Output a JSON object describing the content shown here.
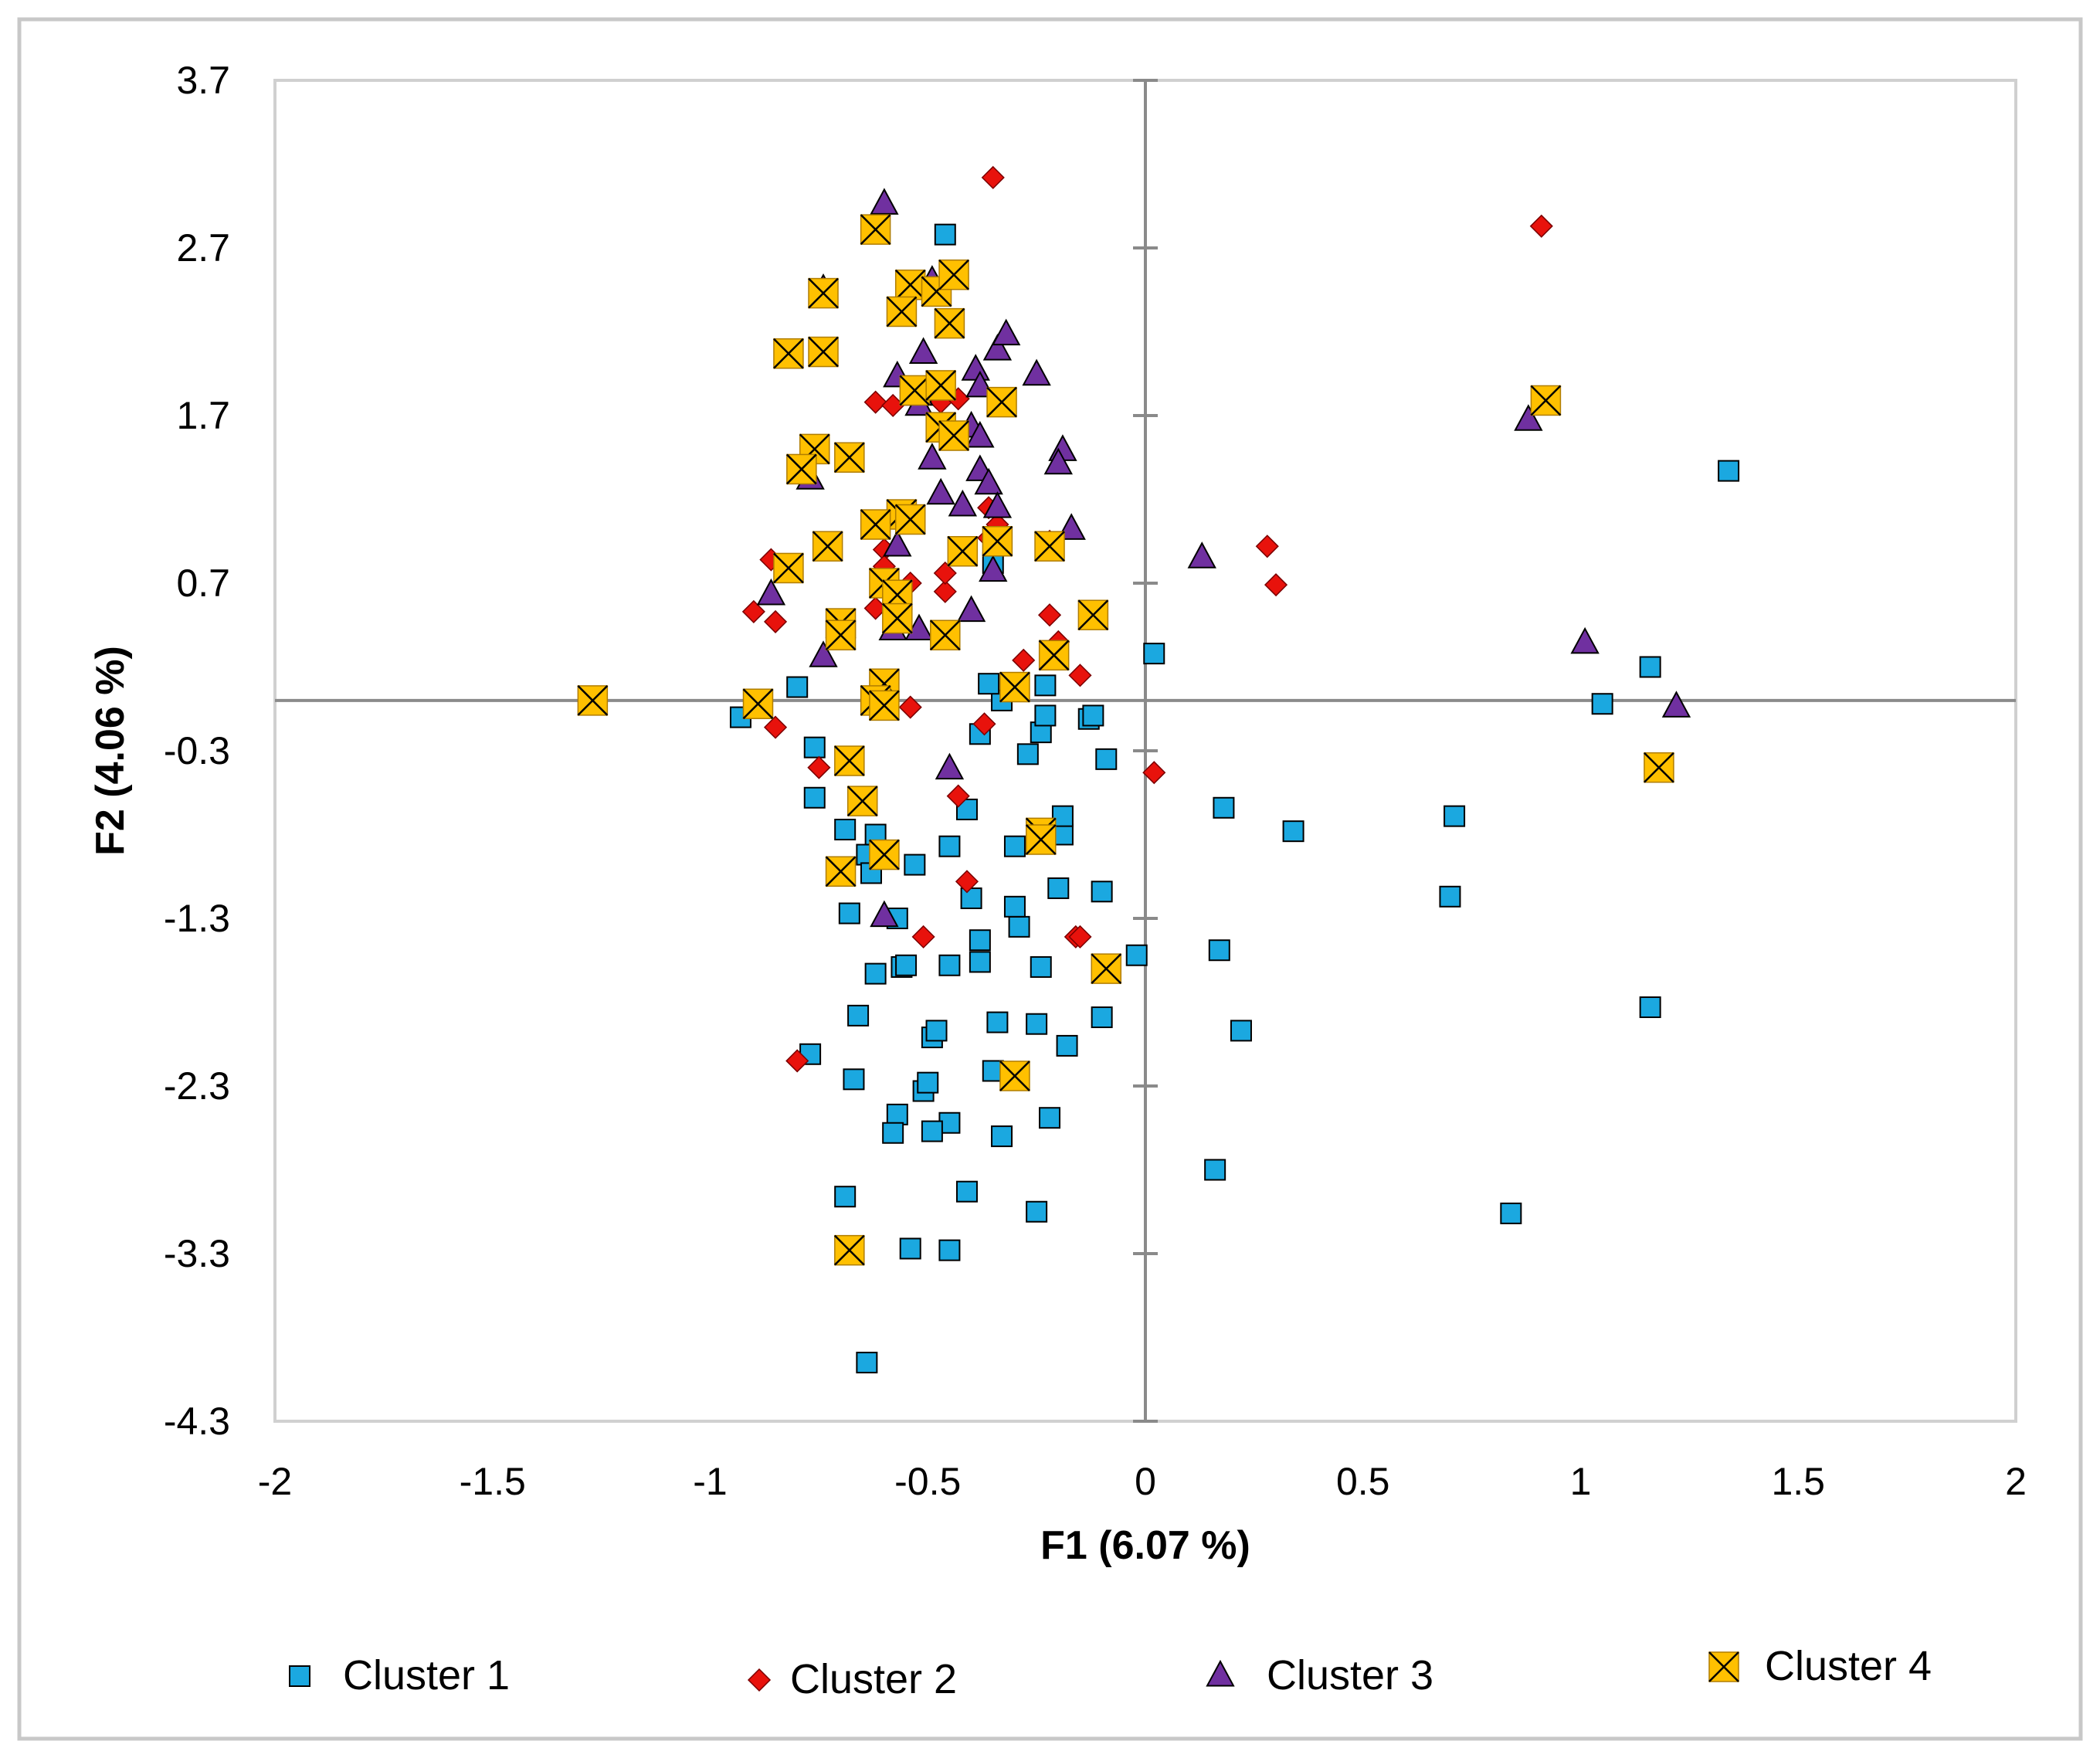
{
  "chart_data": {
    "type": "scatter",
    "title": "",
    "xlabel": "F1 (6.07 %)",
    "ylabel": "F2 (4.06 %)",
    "xlim": [
      -2,
      2
    ],
    "ylim": [
      -4.3,
      3.7
    ],
    "xticks": [
      -2,
      -1.5,
      -1,
      -0.5,
      0,
      0.5,
      1,
      1.5,
      2
    ],
    "xtick_labels": [
      "-2",
      "-1.5",
      "-1",
      "-0.5",
      "0",
      "0.5",
      "1",
      "1.5",
      "2"
    ],
    "yticks": [
      3.7,
      2.7,
      1.7,
      0.7,
      -0.3,
      -1.3,
      -2.3,
      -3.3,
      -4.3
    ],
    "ytick_labels": [
      "3.7",
      "2.7",
      "1.7",
      "0.7",
      "-0.3",
      "-1.3",
      "-2.3",
      "-3.3",
      "-4.3"
    ],
    "grid": false,
    "legend_position": "bottom",
    "series": [
      {
        "name": "Cluster 1",
        "marker": "square",
        "color": "#1BA8E0",
        "points": [
          [
            -0.46,
            2.78
          ],
          [
            -0.8,
            0.08
          ],
          [
            -0.93,
            -0.1
          ],
          [
            -0.76,
            -0.28
          ],
          [
            -0.76,
            -0.58
          ],
          [
            -0.69,
            -0.77
          ],
          [
            -0.64,
            -0.92
          ],
          [
            -0.63,
            -1.03
          ],
          [
            -0.62,
            -0.8
          ],
          [
            -0.68,
            -1.27
          ],
          [
            -0.62,
            -1.63
          ],
          [
            -0.66,
            -1.88
          ],
          [
            -0.77,
            -2.11
          ],
          [
            -0.67,
            -2.26
          ],
          [
            -0.57,
            -2.47
          ],
          [
            -0.58,
            -2.58
          ],
          [
            -0.69,
            -2.96
          ],
          [
            -0.54,
            -3.27
          ],
          [
            -0.45,
            -3.28
          ],
          [
            -0.41,
            -2.93
          ],
          [
            -0.45,
            -2.52
          ],
          [
            -0.49,
            -2.57
          ],
          [
            -0.51,
            -2.33
          ],
          [
            -0.5,
            -2.28
          ],
          [
            -0.49,
            -2.01
          ],
          [
            -0.48,
            -1.97
          ],
          [
            -0.56,
            -1.59
          ],
          [
            -0.55,
            -1.58
          ],
          [
            -0.57,
            -1.3
          ],
          [
            -0.53,
            -0.98
          ],
          [
            -0.45,
            -0.87
          ],
          [
            -0.41,
            -0.65
          ],
          [
            -0.4,
            -1.18
          ],
          [
            -0.38,
            -1.43
          ],
          [
            -0.38,
            -1.56
          ],
          [
            -0.45,
            -1.58
          ],
          [
            -0.34,
            -1.92
          ],
          [
            -0.35,
            -2.21
          ],
          [
            -0.33,
            -2.6
          ],
          [
            -0.25,
            -1.93
          ],
          [
            -0.25,
            -3.05
          ],
          [
            -0.22,
            -2.49
          ],
          [
            -0.18,
            -2.06
          ],
          [
            -0.1,
            -1.89
          ],
          [
            -0.24,
            -1.59
          ],
          [
            -0.29,
            -1.35
          ],
          [
            -0.3,
            -1.23
          ],
          [
            -0.3,
            -0.87
          ],
          [
            -0.2,
            -1.12
          ],
          [
            -0.19,
            -0.8
          ],
          [
            -0.19,
            -0.69
          ],
          [
            -0.1,
            -1.14
          ],
          [
            -0.02,
            -1.52
          ],
          [
            -0.09,
            -0.35
          ],
          [
            -0.27,
            -0.32
          ],
          [
            -0.24,
            -0.19
          ],
          [
            -0.23,
            -0.09
          ],
          [
            -0.13,
            -0.11
          ],
          [
            -0.12,
            -0.09
          ],
          [
            -0.38,
            -0.2
          ],
          [
            -0.33,
            0.0
          ],
          [
            -0.36,
            0.1
          ],
          [
            -0.23,
            0.09
          ],
          [
            -0.35,
            0.82
          ],
          [
            0.02,
            0.28
          ],
          [
            0.18,
            -0.64
          ],
          [
            0.34,
            -0.78
          ],
          [
            0.71,
            -0.69
          ],
          [
            0.7,
            -1.17
          ],
          [
            0.17,
            -1.49
          ],
          [
            0.22,
            -1.97
          ],
          [
            0.16,
            -2.8
          ],
          [
            0.84,
            -3.06
          ],
          [
            1.05,
            -0.02
          ],
          [
            1.16,
            0.2
          ],
          [
            1.34,
            1.37
          ],
          [
            1.16,
            -1.83
          ],
          [
            -0.64,
            -3.95
          ]
        ]
      },
      {
        "name": "Cluster 2",
        "marker": "diamond",
        "color": "#E8120C",
        "points": [
          [
            -0.35,
            3.12
          ],
          [
            0.91,
            2.83
          ],
          [
            -0.62,
            1.78
          ],
          [
            -0.58,
            1.76
          ],
          [
            -0.47,
            1.78
          ],
          [
            -0.43,
            1.8
          ],
          [
            -0.36,
            1.15
          ],
          [
            -0.34,
            1.05
          ],
          [
            -0.6,
            0.9
          ],
          [
            -0.54,
            0.7
          ],
          [
            -0.46,
            0.65
          ],
          [
            -0.46,
            0.76
          ],
          [
            -0.36,
            0.97
          ],
          [
            -0.6,
            0.8
          ],
          [
            -0.62,
            0.55
          ],
          [
            -0.86,
            0.84
          ],
          [
            -0.9,
            0.53
          ],
          [
            -0.85,
            0.47
          ],
          [
            -0.22,
            0.95
          ],
          [
            -0.22,
            0.51
          ],
          [
            -0.2,
            0.35
          ],
          [
            -0.28,
            0.24
          ],
          [
            -0.15,
            0.15
          ],
          [
            -0.54,
            -0.04
          ],
          [
            -0.85,
            -0.16
          ],
          [
            -0.75,
            -0.4
          ],
          [
            -0.37,
            -0.14
          ],
          [
            -0.43,
            -0.57
          ],
          [
            -0.41,
            -1.08
          ],
          [
            -0.51,
            -1.41
          ],
          [
            -0.16,
            -1.41
          ],
          [
            -0.15,
            -1.41
          ],
          [
            -0.8,
            -2.15
          ],
          [
            0.02,
            -0.43
          ],
          [
            0.28,
            0.92
          ],
          [
            0.3,
            0.69
          ]
        ]
      },
      {
        "name": "Cluster 3",
        "marker": "triangle",
        "color": "#7030A0",
        "points": [
          [
            -0.6,
            2.97
          ],
          [
            -0.49,
            2.51
          ],
          [
            -0.74,
            2.46
          ],
          [
            -0.51,
            2.08
          ],
          [
            -0.57,
            1.94
          ],
          [
            -0.39,
            1.98
          ],
          [
            -0.38,
            1.88
          ],
          [
            -0.34,
            2.1
          ],
          [
            -0.32,
            2.19
          ],
          [
            -0.25,
            1.95
          ],
          [
            -0.52,
            1.83
          ],
          [
            -0.52,
            1.77
          ],
          [
            -0.4,
            1.64
          ],
          [
            -0.38,
            1.58
          ],
          [
            -0.19,
            1.5
          ],
          [
            -0.2,
            1.42
          ],
          [
            -0.49,
            1.45
          ],
          [
            -0.38,
            1.38
          ],
          [
            -0.36,
            1.3
          ],
          [
            -0.47,
            1.24
          ],
          [
            -0.42,
            1.17
          ],
          [
            -0.34,
            1.16
          ],
          [
            -0.57,
            0.93
          ],
          [
            -0.35,
            0.78
          ],
          [
            -0.17,
            1.03
          ],
          [
            -0.58,
            0.43
          ],
          [
            -0.52,
            0.43
          ],
          [
            -0.4,
            0.54
          ],
          [
            -0.86,
            0.64
          ],
          [
            -0.74,
            0.27
          ],
          [
            -0.77,
            1.33
          ],
          [
            -0.45,
            -0.4
          ],
          [
            -0.6,
            -1.28
          ],
          [
            0.13,
            0.86
          ],
          [
            0.88,
            1.68
          ],
          [
            1.01,
            0.35
          ],
          [
            1.22,
            -0.03
          ]
        ]
      },
      {
        "name": "Cluster 4",
        "marker": "x-box",
        "color": "#FFC000",
        "points": [
          [
            -0.62,
            2.81
          ],
          [
            -0.74,
            2.43
          ],
          [
            -0.54,
            2.48
          ],
          [
            -0.48,
            2.44
          ],
          [
            -0.44,
            2.54
          ],
          [
            -0.56,
            2.32
          ],
          [
            -0.45,
            2.25
          ],
          [
            -0.82,
            2.07
          ],
          [
            -0.74,
            2.08
          ],
          [
            -0.53,
            1.85
          ],
          [
            -0.47,
            1.88
          ],
          [
            -0.33,
            1.78
          ],
          [
            -0.47,
            1.63
          ],
          [
            -0.44,
            1.58
          ],
          [
            -0.76,
            1.5
          ],
          [
            -0.68,
            1.45
          ],
          [
            -0.79,
            1.38
          ],
          [
            -0.56,
            1.11
          ],
          [
            -0.54,
            1.08
          ],
          [
            -0.62,
            1.05
          ],
          [
            -0.73,
            0.92
          ],
          [
            -0.42,
            0.89
          ],
          [
            -0.34,
            0.95
          ],
          [
            -0.22,
            0.92
          ],
          [
            -0.82,
            0.79
          ],
          [
            -0.6,
            0.7
          ],
          [
            -0.57,
            0.63
          ],
          [
            -0.57,
            0.49
          ],
          [
            -0.7,
            0.46
          ],
          [
            -0.7,
            0.39
          ],
          [
            -0.46,
            0.39
          ],
          [
            -0.12,
            0.51
          ],
          [
            -0.21,
            0.27
          ],
          [
            -0.3,
            0.08
          ],
          [
            -0.6,
            0.1
          ],
          [
            -0.62,
            0.0
          ],
          [
            -0.6,
            -0.03
          ],
          [
            -0.89,
            -0.02
          ],
          [
            -1.27,
            0.0
          ],
          [
            -0.68,
            -0.36
          ],
          [
            -0.65,
            -0.6
          ],
          [
            -0.6,
            -0.92
          ],
          [
            -0.7,
            -1.02
          ],
          [
            -0.24,
            -0.79
          ],
          [
            -0.24,
            -0.83
          ],
          [
            -0.09,
            -1.6
          ],
          [
            -0.3,
            -2.24
          ],
          [
            -0.68,
            -3.28
          ],
          [
            0.92,
            1.79
          ],
          [
            1.18,
            -0.4
          ]
        ]
      }
    ]
  }
}
